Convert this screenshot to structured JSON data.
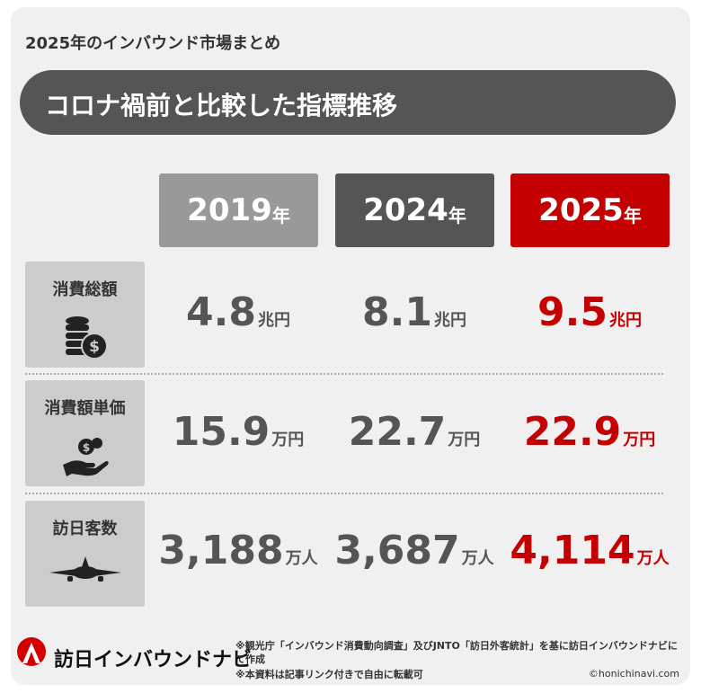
{
  "header": {
    "subtitle": "2025年のインバウンド市場まとめ",
    "title": "コロナ禍前と比較した指標推移"
  },
  "table": {
    "columns": [
      {
        "year": "2019",
        "suffix": "年"
      },
      {
        "year": "2024",
        "suffix": "年"
      },
      {
        "year": "2025",
        "suffix": "年"
      }
    ],
    "rows": [
      {
        "label": "消費総額",
        "cells": [
          {
            "number": "4.8",
            "unit": "兆円"
          },
          {
            "number": "8.1",
            "unit": "兆円"
          },
          {
            "number": "9.5",
            "unit": "兆円"
          }
        ]
      },
      {
        "label": "消費額単価",
        "cells": [
          {
            "number": "15.9",
            "unit": "万円"
          },
          {
            "number": "22.7",
            "unit": "万円"
          },
          {
            "number": "22.9",
            "unit": "万円"
          }
        ]
      },
      {
        "label": "訪日客数",
        "cells": [
          {
            "number": "3,188",
            "unit": "万人"
          },
          {
            "number": "3,687",
            "unit": "万人"
          },
          {
            "number": "4,114",
            "unit": "万人"
          }
        ]
      }
    ]
  },
  "footer": {
    "brand": "訪日インバウンドナビ",
    "notes": [
      "※観光庁「インバウンド消費動向調査」及びJNTO「訪日外客統計」を基に訪日インバウンドナビにて作成",
      "※本資料は記事リンク付きで自由に転載可"
    ],
    "credit": "©honichinavi.com"
  }
}
